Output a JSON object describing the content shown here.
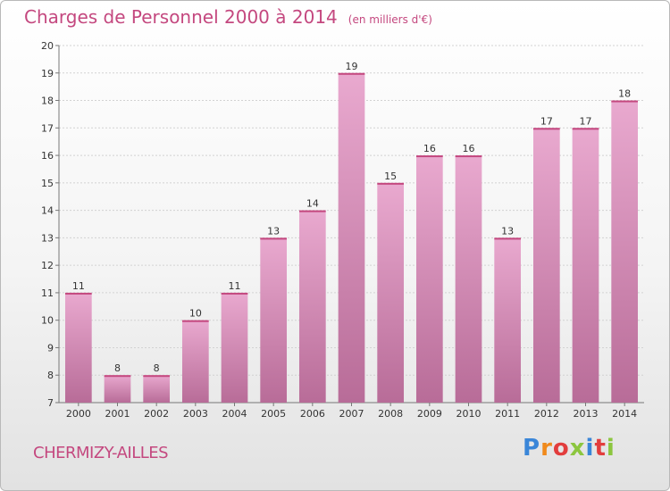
{
  "title": "Charges de Personnel 2000 à 2014",
  "unit": "(en milliers d'€)",
  "commune": "CHERMIZY-AILLES",
  "logo": {
    "text": "Proxiti",
    "colors": [
      "#3a86d8",
      "#f08a1c",
      "#e23d3d",
      "#8cc63f",
      "#3a86d8",
      "#e23d3d",
      "#8cc63f"
    ]
  },
  "colors": {
    "bar_top": "#e9a9cf",
    "bar_bottom": "#b86c98",
    "accent": "#c4487f"
  },
  "chart_data": {
    "type": "bar",
    "categories": [
      "2000",
      "2001",
      "2002",
      "2003",
      "2004",
      "2005",
      "2006",
      "2007",
      "2008",
      "2009",
      "2010",
      "2011",
      "2012",
      "2013",
      "2014"
    ],
    "values": [
      11,
      8,
      8,
      10,
      11,
      13,
      14,
      19,
      15,
      16,
      16,
      13,
      17,
      17,
      18
    ],
    "title": "Charges de Personnel 2000 à 2014",
    "xlabel": "",
    "ylabel": "",
    "ylim": [
      7,
      20
    ],
    "yticks": [
      7,
      8,
      9,
      10,
      11,
      12,
      13,
      14,
      15,
      16,
      17,
      18,
      19,
      20
    ],
    "grid": true,
    "data_labels": true
  }
}
